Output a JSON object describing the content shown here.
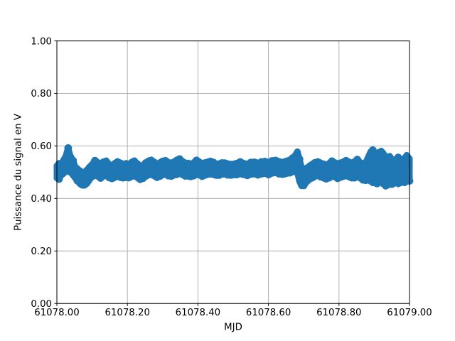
{
  "figure": {
    "background": "#ffffff"
  },
  "chart_data": {
    "type": "scatter",
    "title": "",
    "xlabel": "MJD",
    "ylabel": "Puissance du signal en V",
    "xlim": [
      61078.0,
      61079.0
    ],
    "ylim": [
      0.0,
      1.0
    ],
    "xticks": [
      61078.0,
      61078.2,
      61078.4,
      61078.6,
      61078.8,
      61079.0
    ],
    "xtick_labels": [
      "61078.00",
      "61078.20",
      "61078.40",
      "61078.60",
      "61078.80",
      "61079.00"
    ],
    "yticks": [
      0.0,
      0.2,
      0.4,
      0.6,
      0.8,
      1.0
    ],
    "ytick_labels": [
      "0.00",
      "0.20",
      "0.40",
      "0.60",
      "0.80",
      "1.00"
    ],
    "grid": true,
    "legend": null,
    "marker_color": "#1f77b4",
    "grid_color": "#b0b0b0",
    "axis_color": "#000000",
    "series_representation": "dense noisy scatter around 0.5 V; envelope samples [mjd, y_low, y_high] of dot centers",
    "band": [
      [
        61078.0,
        0.478,
        0.525
      ],
      [
        61078.006,
        0.474,
        0.534
      ],
      [
        61078.012,
        0.488,
        0.52
      ],
      [
        61078.018,
        0.494,
        0.544
      ],
      [
        61078.025,
        0.504,
        0.56
      ],
      [
        61078.032,
        0.512,
        0.592
      ],
      [
        61078.036,
        0.518,
        0.57
      ],
      [
        61078.04,
        0.5,
        0.558
      ],
      [
        61078.046,
        0.488,
        0.544
      ],
      [
        61078.052,
        0.478,
        0.52
      ],
      [
        61078.058,
        0.468,
        0.514
      ],
      [
        61078.065,
        0.456,
        0.504
      ],
      [
        61078.072,
        0.45,
        0.5
      ],
      [
        61078.078,
        0.452,
        0.496
      ],
      [
        61078.085,
        0.456,
        0.506
      ],
      [
        61078.092,
        0.47,
        0.52
      ],
      [
        61078.1,
        0.484,
        0.53
      ],
      [
        61078.108,
        0.488,
        0.544
      ],
      [
        61078.116,
        0.484,
        0.538
      ],
      [
        61078.124,
        0.478,
        0.528
      ],
      [
        61078.132,
        0.484,
        0.538
      ],
      [
        61078.14,
        0.488,
        0.544
      ],
      [
        61078.148,
        0.48,
        0.53
      ],
      [
        61078.156,
        0.474,
        0.524
      ],
      [
        61078.164,
        0.479,
        0.534
      ],
      [
        61078.172,
        0.485,
        0.541
      ],
      [
        61078.18,
        0.479,
        0.534
      ],
      [
        61078.188,
        0.477,
        0.527
      ],
      [
        61078.196,
        0.481,
        0.534
      ],
      [
        61078.204,
        0.477,
        0.529
      ],
      [
        61078.212,
        0.483,
        0.539
      ],
      [
        61078.22,
        0.487,
        0.544
      ],
      [
        61078.228,
        0.479,
        0.531
      ],
      [
        61078.236,
        0.471,
        0.521
      ],
      [
        61078.244,
        0.477,
        0.527
      ],
      [
        61078.252,
        0.483,
        0.535
      ],
      [
        61078.26,
        0.489,
        0.544
      ],
      [
        61078.268,
        0.492,
        0.547
      ],
      [
        61078.276,
        0.485,
        0.537
      ],
      [
        61078.284,
        0.479,
        0.529
      ],
      [
        61078.292,
        0.485,
        0.537
      ],
      [
        61078.3,
        0.489,
        0.541
      ],
      [
        61078.308,
        0.493,
        0.546
      ],
      [
        61078.316,
        0.487,
        0.538
      ],
      [
        61078.324,
        0.483,
        0.534
      ],
      [
        61078.332,
        0.488,
        0.54
      ],
      [
        61078.34,
        0.492,
        0.547
      ],
      [
        61078.348,
        0.495,
        0.55
      ],
      [
        61078.356,
        0.49,
        0.542
      ],
      [
        61078.364,
        0.486,
        0.536
      ],
      [
        61078.372,
        0.484,
        0.533
      ],
      [
        61078.38,
        0.482,
        0.53
      ],
      [
        61078.388,
        0.487,
        0.537
      ],
      [
        61078.396,
        0.492,
        0.545
      ],
      [
        61078.404,
        0.489,
        0.54
      ],
      [
        61078.412,
        0.485,
        0.533
      ],
      [
        61078.42,
        0.487,
        0.535
      ],
      [
        61078.428,
        0.491,
        0.54
      ],
      [
        61078.436,
        0.494,
        0.543
      ],
      [
        61078.444,
        0.49,
        0.537
      ],
      [
        61078.452,
        0.487,
        0.531
      ],
      [
        61078.46,
        0.489,
        0.533
      ],
      [
        61078.468,
        0.491,
        0.535
      ],
      [
        61078.476,
        0.493,
        0.537
      ],
      [
        61078.484,
        0.49,
        0.533
      ],
      [
        61078.492,
        0.487,
        0.529
      ],
      [
        61078.5,
        0.489,
        0.531
      ],
      [
        61078.51,
        0.491,
        0.535
      ],
      [
        61078.52,
        0.493,
        0.539
      ],
      [
        61078.53,
        0.49,
        0.535
      ],
      [
        61078.54,
        0.488,
        0.531
      ],
      [
        61078.55,
        0.491,
        0.537
      ],
      [
        61078.56,
        0.493,
        0.54
      ],
      [
        61078.57,
        0.49,
        0.535
      ],
      [
        61078.58,
        0.492,
        0.539
      ],
      [
        61078.59,
        0.495,
        0.543
      ],
      [
        61078.6,
        0.491,
        0.537
      ],
      [
        61078.61,
        0.495,
        0.543
      ],
      [
        61078.62,
        0.498,
        0.547
      ],
      [
        61078.63,
        0.494,
        0.541
      ],
      [
        61078.64,
        0.49,
        0.537
      ],
      [
        61078.65,
        0.494,
        0.543
      ],
      [
        61078.66,
        0.498,
        0.547
      ],
      [
        61078.668,
        0.5,
        0.553
      ],
      [
        61078.676,
        0.503,
        0.565
      ],
      [
        61078.682,
        0.5,
        0.578
      ],
      [
        61078.688,
        0.466,
        0.55
      ],
      [
        61078.694,
        0.448,
        0.516
      ],
      [
        61078.7,
        0.45,
        0.506
      ],
      [
        61078.708,
        0.462,
        0.514
      ],
      [
        61078.716,
        0.472,
        0.524
      ],
      [
        61078.724,
        0.479,
        0.531
      ],
      [
        61078.732,
        0.483,
        0.536
      ],
      [
        61078.74,
        0.487,
        0.541
      ],
      [
        61078.748,
        0.483,
        0.536
      ],
      [
        61078.756,
        0.477,
        0.53
      ],
      [
        61078.764,
        0.473,
        0.526
      ],
      [
        61078.772,
        0.479,
        0.534
      ],
      [
        61078.78,
        0.485,
        0.542
      ],
      [
        61078.788,
        0.481,
        0.538
      ],
      [
        61078.796,
        0.477,
        0.532
      ],
      [
        61078.804,
        0.479,
        0.534
      ],
      [
        61078.812,
        0.483,
        0.54
      ],
      [
        61078.82,
        0.487,
        0.546
      ],
      [
        61078.828,
        0.482,
        0.538
      ],
      [
        61078.836,
        0.477,
        0.534
      ],
      [
        61078.844,
        0.479,
        0.541
      ],
      [
        61078.852,
        0.483,
        0.548
      ],
      [
        61078.86,
        0.477,
        0.538
      ],
      [
        61078.868,
        0.471,
        0.531
      ],
      [
        61078.876,
        0.467,
        0.536
      ],
      [
        61078.884,
        0.472,
        0.561
      ],
      [
        61078.89,
        0.467,
        0.578
      ],
      [
        61078.896,
        0.459,
        0.584
      ],
      [
        61078.902,
        0.467,
        0.571
      ],
      [
        61078.908,
        0.457,
        0.561
      ],
      [
        61078.914,
        0.462,
        0.574
      ],
      [
        61078.92,
        0.465,
        0.581
      ],
      [
        61078.926,
        0.457,
        0.571
      ],
      [
        61078.932,
        0.446,
        0.558
      ],
      [
        61078.938,
        0.45,
        0.551
      ],
      [
        61078.944,
        0.457,
        0.561
      ],
      [
        61078.95,
        0.452,
        0.548
      ],
      [
        61078.956,
        0.457,
        0.541
      ],
      [
        61078.962,
        0.462,
        0.548
      ],
      [
        61078.968,
        0.455,
        0.556
      ],
      [
        61078.974,
        0.459,
        0.548
      ],
      [
        61078.98,
        0.465,
        0.541
      ],
      [
        61078.986,
        0.459,
        0.551
      ],
      [
        61078.992,
        0.465,
        0.565
      ],
      [
        61079.0,
        0.467,
        0.551
      ]
    ]
  }
}
